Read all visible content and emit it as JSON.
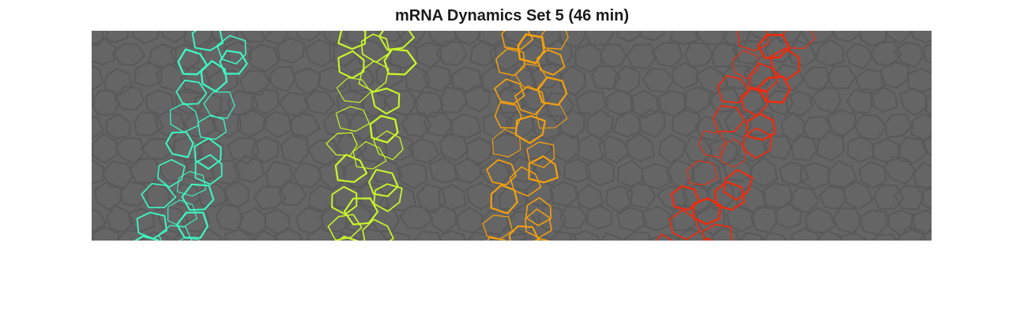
{
  "figure": {
    "title": "mRNA Dynamics Set 5 (46 min)"
  },
  "image": {
    "subject": "cell-membrane-segmentation",
    "background_color": "#656565",
    "membrane_color": "#5a5a5a",
    "stripes": [
      {
        "name": "stripe-1",
        "color": "#3ef5c2"
      },
      {
        "name": "stripe-2",
        "color": "#c8f52a"
      },
      {
        "name": "stripe-3",
        "color": "#f5a00c"
      },
      {
        "name": "stripe-4",
        "color": "#f02a0c"
      }
    ]
  }
}
